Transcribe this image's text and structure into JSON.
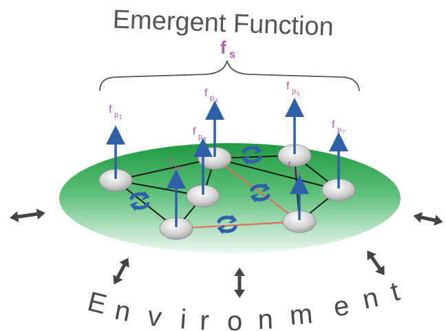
{
  "title": "Emergent Function",
  "system_function": {
    "letter": "f",
    "sub": "s"
  },
  "environment_letters": [
    "E",
    "n",
    "v",
    "i",
    "r",
    "o",
    "n",
    "m",
    "e",
    "n",
    "t"
  ],
  "part_functions": [
    {
      "id": "p1",
      "letter": "f",
      "sub": "p",
      "index": "1"
    },
    {
      "id": "p2",
      "letter": "f",
      "sub": "p",
      "index": "2"
    },
    {
      "id": "p3",
      "letter": "f",
      "sub": "p",
      "index": "3"
    },
    {
      "id": "p4",
      "letter": "f",
      "sub": "p",
      "index": "4"
    },
    {
      "id": "p5",
      "letter": "f",
      "sub": "p",
      "index": "5"
    },
    {
      "id": "p6",
      "letter": "f",
      "sub": "p",
      "index": "6"
    },
    {
      "id": "p7",
      "letter": "f",
      "sub": "p",
      "index": "7"
    }
  ],
  "colors": {
    "title": "#555555",
    "label": "#b45aa8",
    "disk_top": "#2ea043",
    "disk_bottom": "#eef8f3",
    "arrow": "#2f5fa8",
    "edge": "#1a1a1a",
    "edge_highlight": "#e07060",
    "double_arrow": "#444444",
    "rotation": "#2f5fa8"
  }
}
